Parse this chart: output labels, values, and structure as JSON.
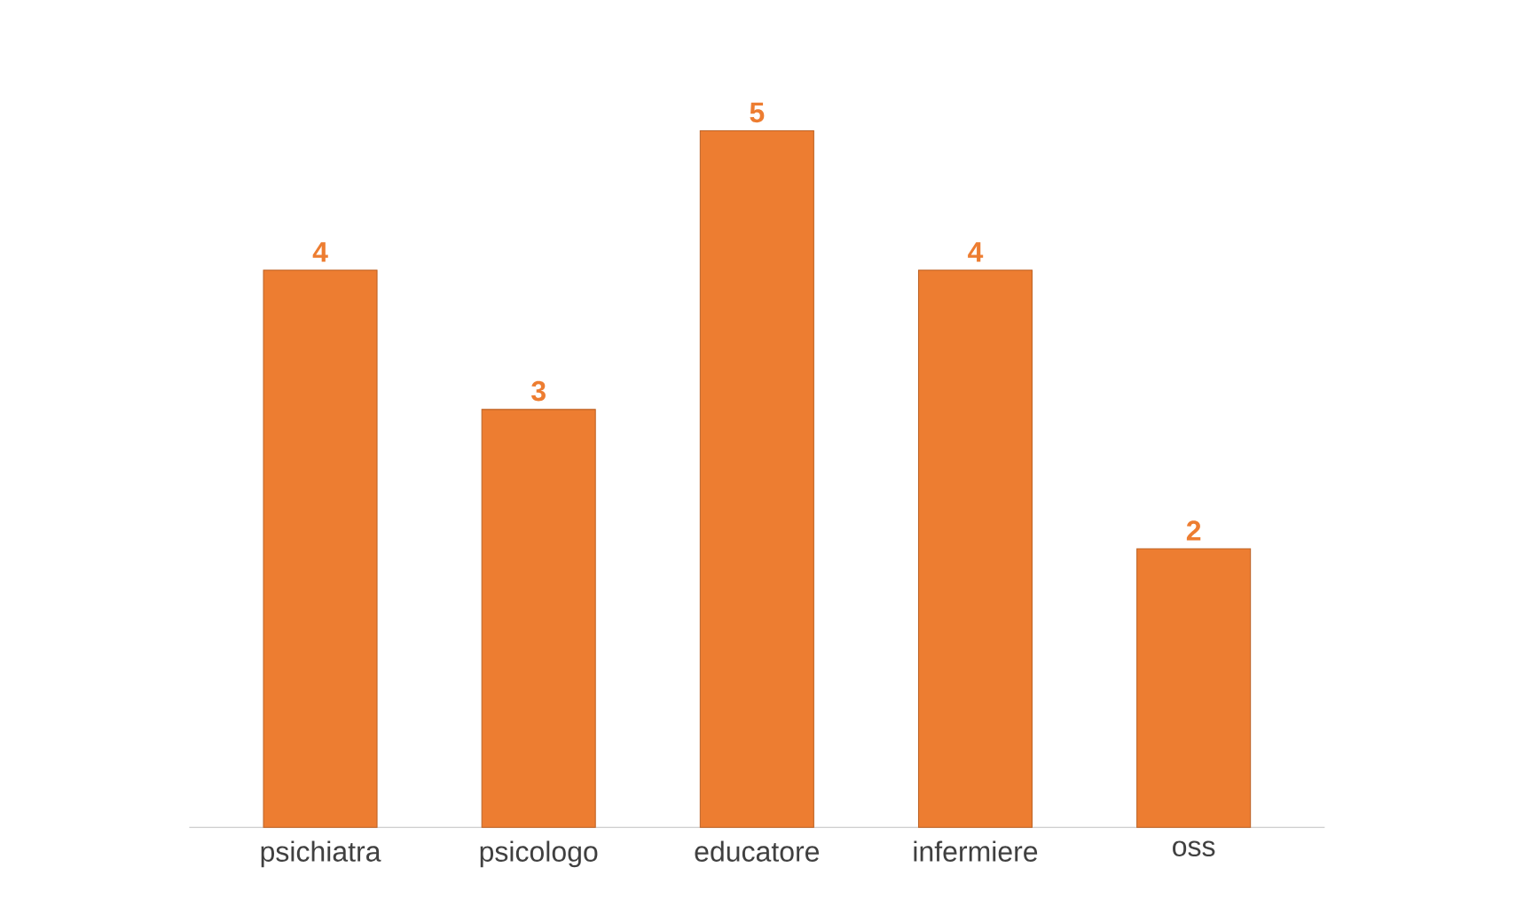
{
  "chart_data": {
    "type": "bar",
    "categories": [
      "psichiatra",
      "psicologo",
      "educatore",
      "infermiere",
      "oss"
    ],
    "values": [
      4,
      3,
      5,
      4,
      2
    ],
    "color": "#ed7d31",
    "data_labels": true
  }
}
